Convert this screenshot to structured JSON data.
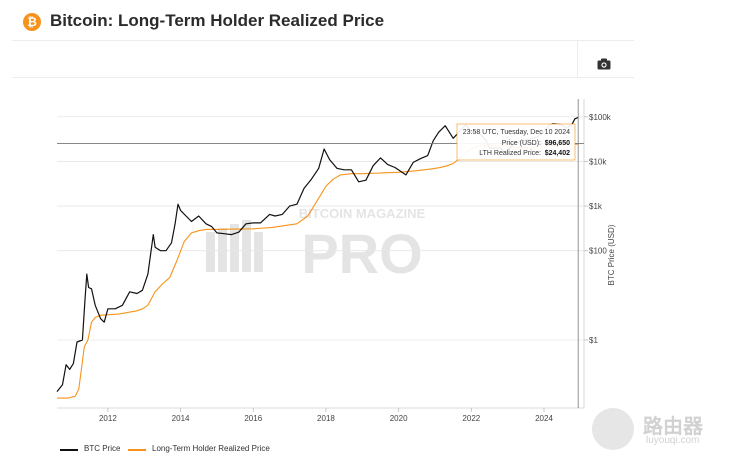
{
  "header": {
    "icon": "bitcoin-icon",
    "title": "Bitcoin: Long-Term Holder Realized Price",
    "accent": "#f7931a"
  },
  "toolbar": {
    "camera_icon": "camera-icon"
  },
  "watermark": {
    "line1": "BITCOIN MAGAZINE",
    "line2": "PRO"
  },
  "corner_watermark": {
    "line1": "路由器",
    "line2": "luyouqi.com"
  },
  "tooltip": {
    "time": "23:58 UTC, Tuesday, Dec 10 2024",
    "price_label": "Price (USD):",
    "price_value": "$96,650",
    "lth_label": "LTH Realized Price:",
    "lth_value": "$24,402"
  },
  "legend": {
    "btc_label": "BTC Price",
    "lth_label": "Long-Term Holder Realized Price"
  },
  "chart_data": {
    "type": "line",
    "title": "Bitcoin: Long-Term Holder Realized Price",
    "ylabel": "BTC Price (USD)",
    "yscale": "log",
    "ylim": [
      0.03,
      250000
    ],
    "xlim": [
      2010.6,
      2025.1
    ],
    "x_ticks": [
      "2012",
      "2014",
      "2016",
      "2018",
      "2020",
      "2022",
      "2024"
    ],
    "y_ticks": [
      {
        "value": 1,
        "label": "$1"
      },
      {
        "value": 100,
        "label": "$100"
      },
      {
        "value": 1000,
        "label": "$1k"
      },
      {
        "value": 10000,
        "label": "$10k"
      },
      {
        "value": 100000,
        "label": "$100k"
      }
    ],
    "colors": {
      "btc": "#111111",
      "lth": "#f7931a"
    },
    "series": [
      {
        "name": "BTC Price",
        "points": [
          [
            2010.6,
            0.07
          ],
          [
            2010.75,
            0.1
          ],
          [
            2010.85,
            0.28
          ],
          [
            2010.95,
            0.22
          ],
          [
            2011.05,
            0.3
          ],
          [
            2011.15,
            0.9
          ],
          [
            2011.3,
            1.0
          ],
          [
            2011.37,
            8
          ],
          [
            2011.42,
            30
          ],
          [
            2011.47,
            15
          ],
          [
            2011.55,
            14
          ],
          [
            2011.65,
            6
          ],
          [
            2011.8,
            3
          ],
          [
            2011.9,
            2.5
          ],
          [
            2012.0,
            5
          ],
          [
            2012.2,
            5
          ],
          [
            2012.4,
            6
          ],
          [
            2012.6,
            12
          ],
          [
            2012.8,
            11
          ],
          [
            2012.95,
            13
          ],
          [
            2013.1,
            30
          ],
          [
            2013.25,
            230
          ],
          [
            2013.3,
            120
          ],
          [
            2013.45,
            100
          ],
          [
            2013.6,
            100
          ],
          [
            2013.75,
            150
          ],
          [
            2013.85,
            400
          ],
          [
            2013.93,
            1100
          ],
          [
            2014.0,
            800
          ],
          [
            2014.15,
            600
          ],
          [
            2014.3,
            450
          ],
          [
            2014.5,
            600
          ],
          [
            2014.7,
            400
          ],
          [
            2014.85,
            350
          ],
          [
            2015.0,
            250
          ],
          [
            2015.2,
            240
          ],
          [
            2015.4,
            230
          ],
          [
            2015.6,
            260
          ],
          [
            2015.8,
            400
          ],
          [
            2016.0,
            420
          ],
          [
            2016.2,
            420
          ],
          [
            2016.45,
            650
          ],
          [
            2016.6,
            600
          ],
          [
            2016.8,
            650
          ],
          [
            2017.0,
            1000
          ],
          [
            2017.2,
            1100
          ],
          [
            2017.4,
            2500
          ],
          [
            2017.6,
            4000
          ],
          [
            2017.8,
            7000
          ],
          [
            2017.95,
            19000
          ],
          [
            2018.1,
            11000
          ],
          [
            2018.3,
            7000
          ],
          [
            2018.5,
            6500
          ],
          [
            2018.7,
            6500
          ],
          [
            2018.9,
            3500
          ],
          [
            2019.1,
            3800
          ],
          [
            2019.3,
            8000
          ],
          [
            2019.5,
            12000
          ],
          [
            2019.7,
            8500
          ],
          [
            2019.9,
            7300
          ],
          [
            2020.2,
            5000
          ],
          [
            2020.4,
            9500
          ],
          [
            2020.6,
            11500
          ],
          [
            2020.8,
            13500
          ],
          [
            2020.95,
            29000
          ],
          [
            2021.1,
            45000
          ],
          [
            2021.28,
            63000
          ],
          [
            2021.5,
            33000
          ],
          [
            2021.68,
            47000
          ],
          [
            2021.85,
            66000
          ],
          [
            2022.0,
            46000
          ],
          [
            2022.2,
            44000
          ],
          [
            2022.4,
            30000
          ],
          [
            2022.5,
            20000
          ],
          [
            2022.8,
            20000
          ],
          [
            2022.9,
            16500
          ],
          [
            2023.0,
            17000
          ],
          [
            2023.2,
            27000
          ],
          [
            2023.5,
            30000
          ],
          [
            2023.8,
            35000
          ],
          [
            2023.95,
            42000
          ],
          [
            2024.15,
            65000
          ],
          [
            2024.25,
            70000
          ],
          [
            2024.45,
            67000
          ],
          [
            2024.6,
            58000
          ],
          [
            2024.75,
            63000
          ],
          [
            2024.85,
            90000
          ],
          [
            2024.94,
            96650
          ]
        ]
      },
      {
        "name": "Long-Term Holder Realized Price",
        "points": [
          [
            2010.6,
            0.05
          ],
          [
            2010.9,
            0.05
          ],
          [
            2011.1,
            0.055
          ],
          [
            2011.2,
            0.08
          ],
          [
            2011.28,
            0.25
          ],
          [
            2011.35,
            0.7
          ],
          [
            2011.45,
            1.0
          ],
          [
            2011.55,
            2.5
          ],
          [
            2011.65,
            3.2
          ],
          [
            2011.8,
            3.6
          ],
          [
            2012.3,
            3.8
          ],
          [
            2012.8,
            4.5
          ],
          [
            2012.95,
            5
          ],
          [
            2013.1,
            6
          ],
          [
            2013.3,
            12
          ],
          [
            2013.5,
            18
          ],
          [
            2013.7,
            25
          ],
          [
            2013.9,
            60
          ],
          [
            2014.1,
            160
          ],
          [
            2014.3,
            250
          ],
          [
            2014.5,
            280
          ],
          [
            2014.7,
            300
          ],
          [
            2015.0,
            300
          ],
          [
            2015.5,
            305
          ],
          [
            2016.0,
            310
          ],
          [
            2016.5,
            330
          ],
          [
            2016.8,
            360
          ],
          [
            2017.2,
            400
          ],
          [
            2017.5,
            600
          ],
          [
            2017.8,
            1500
          ],
          [
            2018.0,
            2800
          ],
          [
            2018.2,
            4000
          ],
          [
            2018.4,
            5000
          ],
          [
            2018.7,
            5300
          ],
          [
            2019.0,
            5300
          ],
          [
            2019.5,
            5500
          ],
          [
            2020.0,
            5700
          ],
          [
            2020.5,
            6200
          ],
          [
            2020.9,
            6800
          ],
          [
            2021.1,
            7200
          ],
          [
            2021.3,
            7800
          ],
          [
            2021.5,
            9000
          ],
          [
            2021.7,
            12000
          ],
          [
            2021.9,
            17000
          ],
          [
            2022.1,
            21000
          ],
          [
            2022.3,
            23000
          ],
          [
            2022.5,
            23500
          ],
          [
            2022.8,
            22000
          ],
          [
            2023.0,
            21000
          ],
          [
            2023.3,
            20500
          ],
          [
            2023.6,
            20500
          ],
          [
            2023.9,
            21000
          ],
          [
            2024.2,
            23000
          ],
          [
            2024.5,
            24000
          ],
          [
            2024.94,
            24402
          ]
        ]
      }
    ],
    "crosshair": {
      "x": 2024.94,
      "y": 96650
    }
  }
}
